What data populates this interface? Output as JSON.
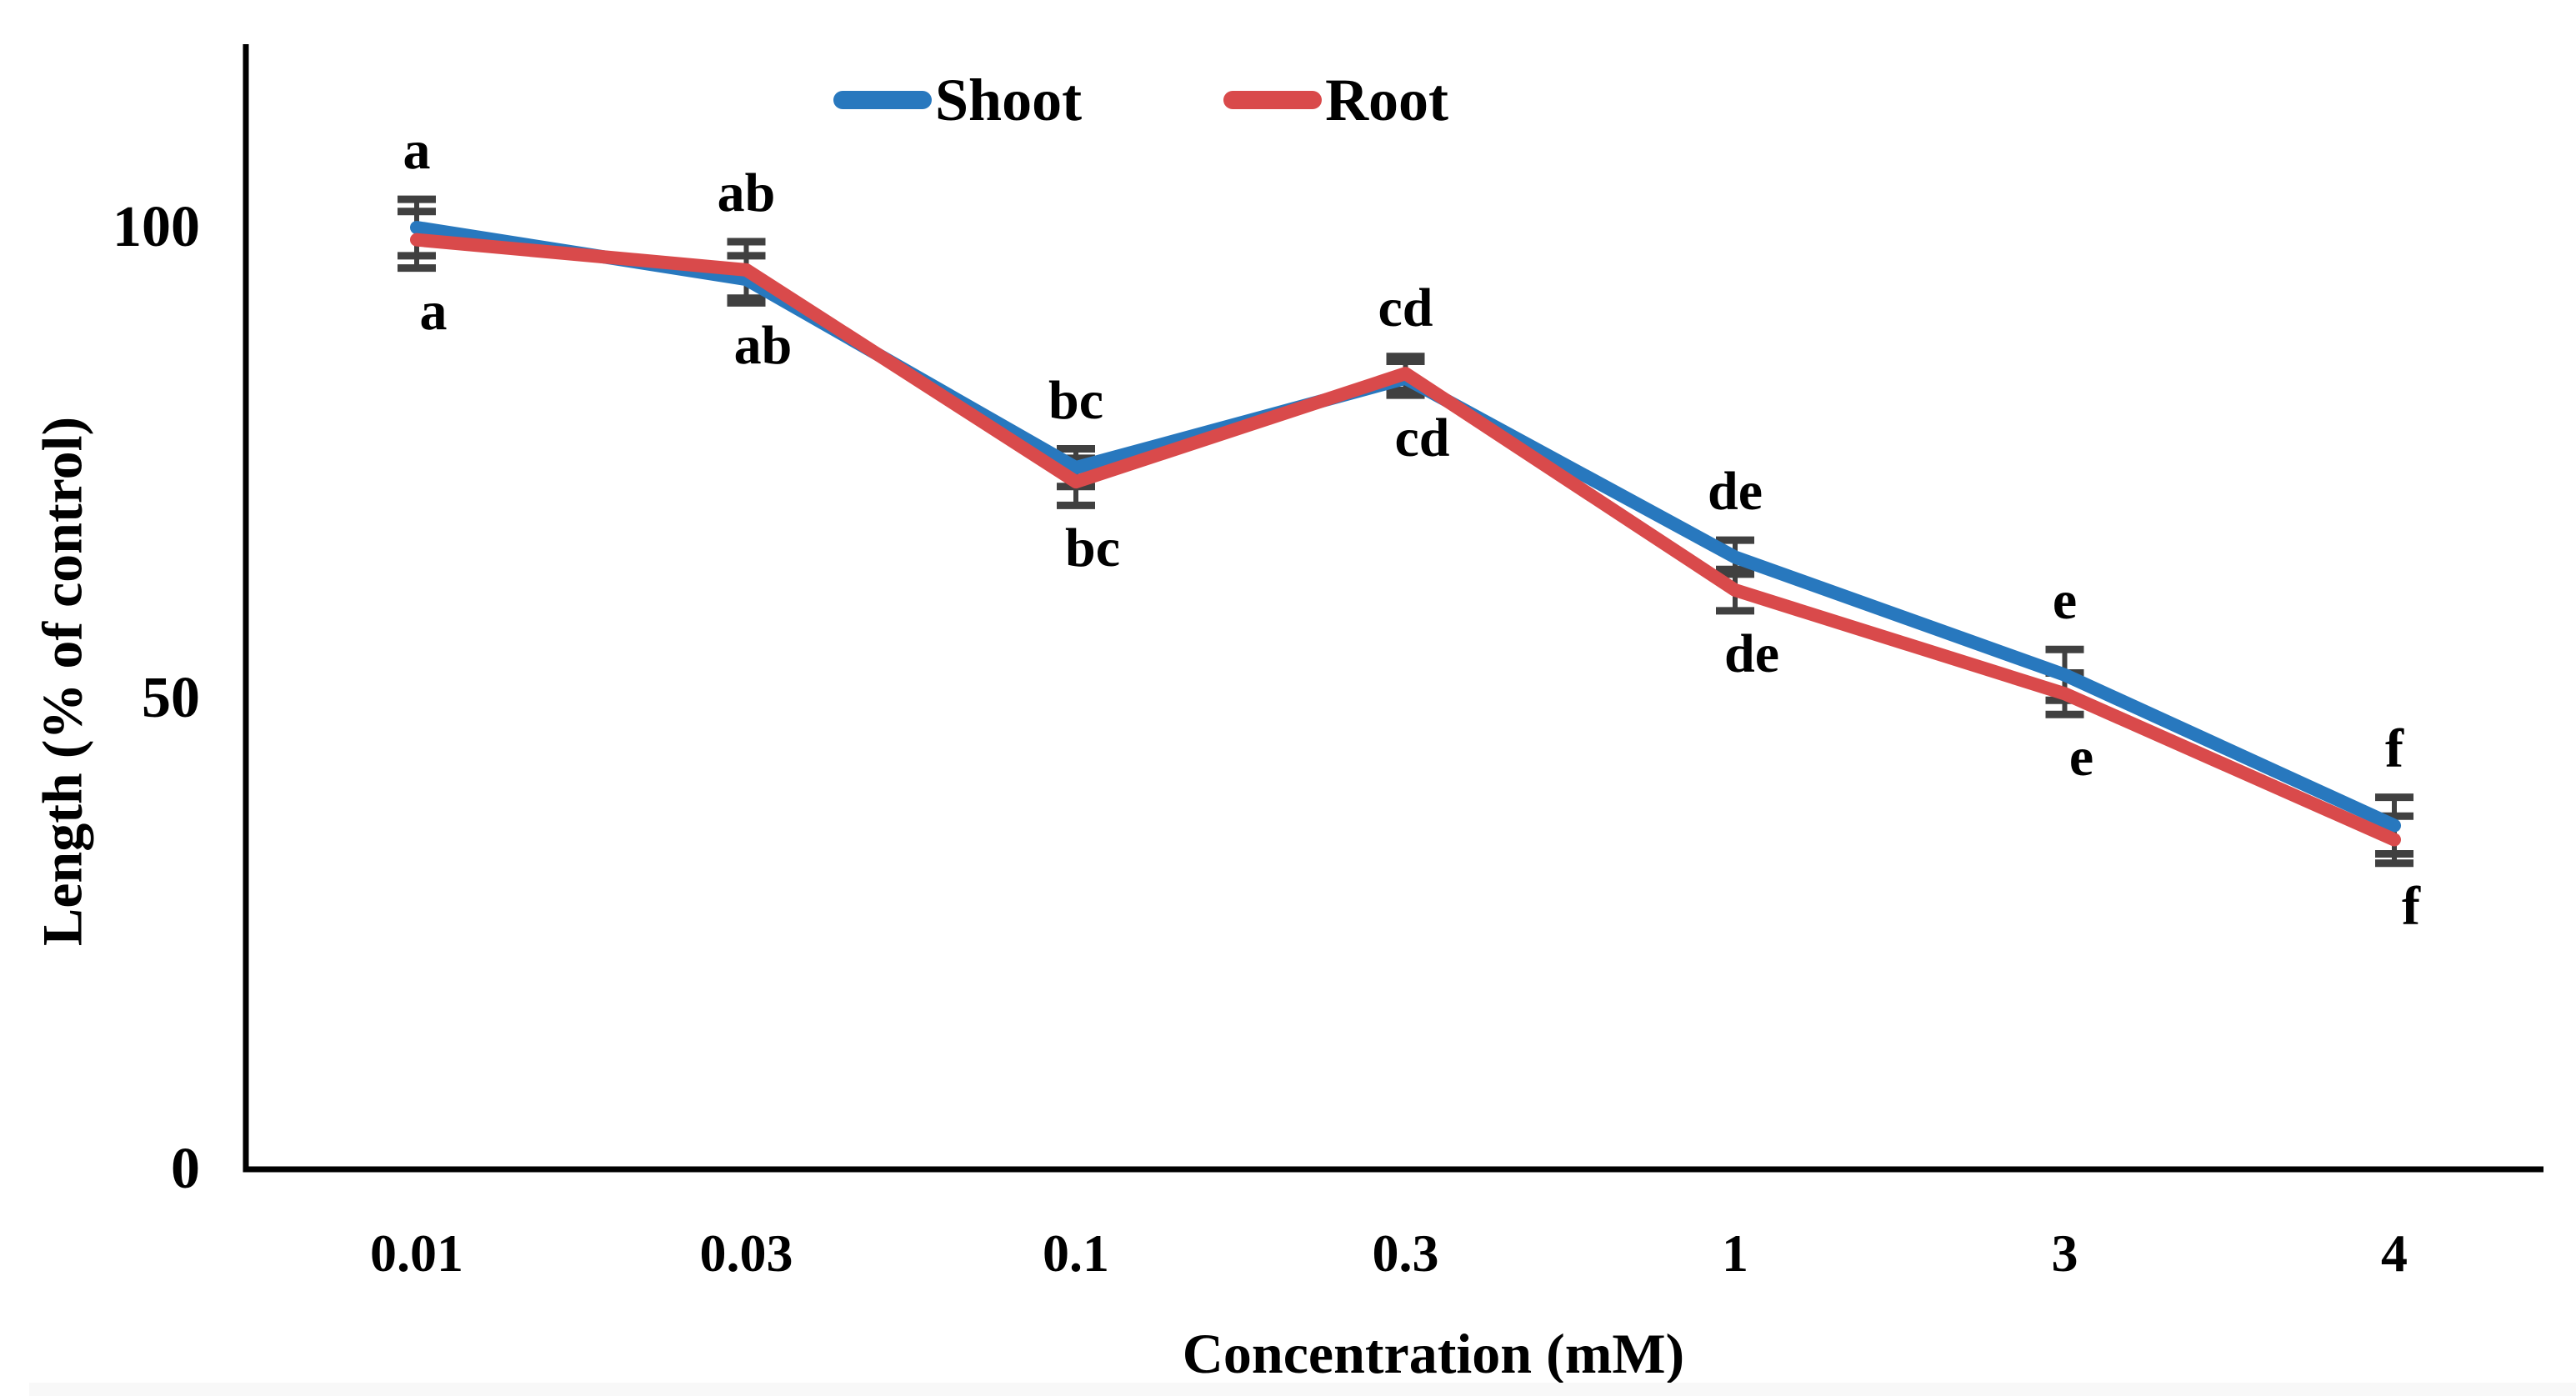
{
  "chart_data": {
    "type": "line",
    "title": "",
    "xlabel": "Concentration (mM)",
    "ylabel": "Length (% of control)",
    "categories": [
      "0.01",
      "0.03",
      "0.1",
      "0.3",
      "1",
      "3",
      "4"
    ],
    "yticks": [
      0,
      50,
      100
    ],
    "ylim": [
      0,
      119
    ],
    "grid": false,
    "legend_position": "top-center",
    "axis_color": "#000000",
    "error_bar_color": "#404040",
    "series": [
      {
        "name": "Shoot",
        "color": "#2878BE",
        "values": [
          100,
          94.5,
          74.5,
          84,
          65,
          52.5,
          36.5
        ],
        "errors": [
          3,
          2.5,
          2,
          1.8,
          1.8,
          2.7,
          3
        ]
      },
      {
        "name": "Root",
        "color": "#D94A4B",
        "values": [
          98.7,
          95.5,
          73,
          84.5,
          61.5,
          50.5,
          35
        ],
        "errors": [
          3,
          3,
          2.5,
          1.8,
          2.2,
          2.2,
          2.5
        ]
      }
    ],
    "sig_labels_above": [
      "a",
      "ab",
      "bc",
      "cd",
      "de",
      "e",
      "f"
    ],
    "sig_labels_below": [
      "a",
      "ab",
      "bc",
      "cd",
      "de",
      "e",
      "f"
    ]
  }
}
